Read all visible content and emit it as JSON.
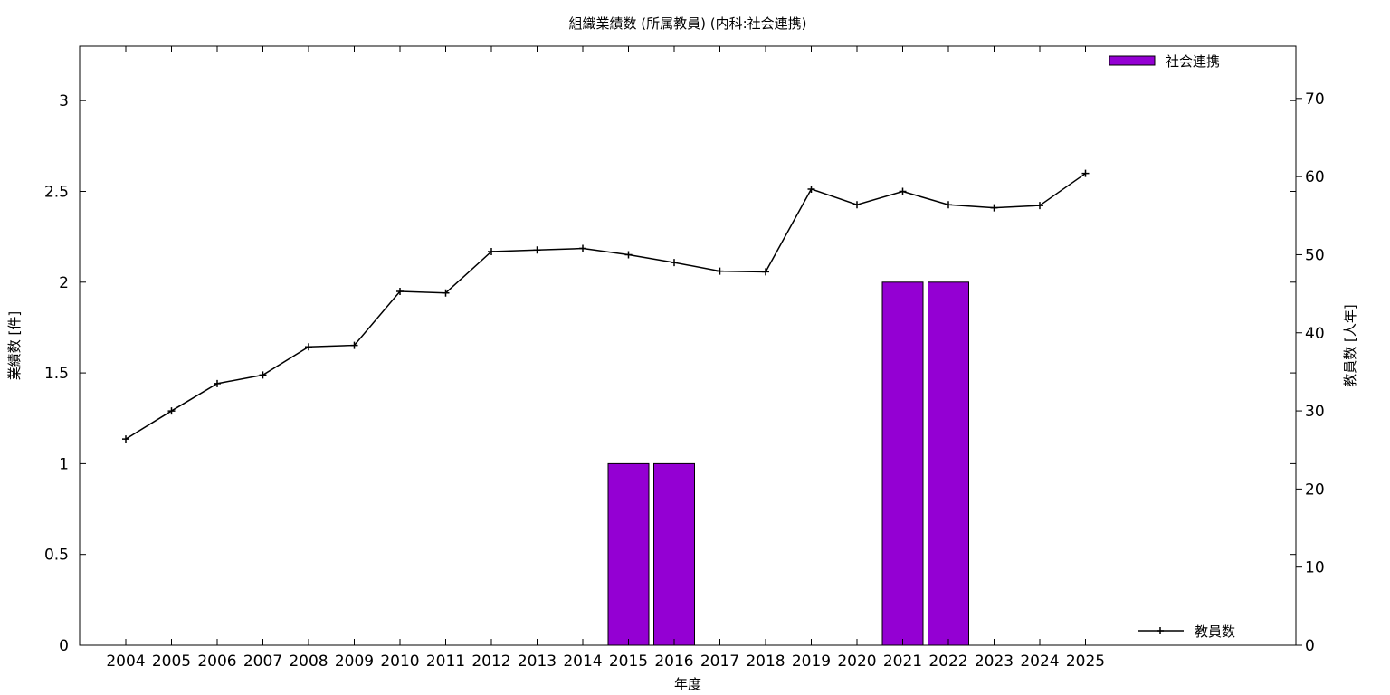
{
  "chart_data": {
    "type": "bar",
    "title": "組織業績数 (所属教員) (内科:社会連携)",
    "xlabel": "年度",
    "ylabel": "業績数 [件]",
    "y2label": "教員数 [人年]",
    "categories": [
      "2004",
      "2005",
      "2006",
      "2007",
      "2008",
      "2009",
      "2010",
      "2011",
      "2012",
      "2013",
      "2014",
      "2015",
      "2016",
      "2017",
      "2018",
      "2019",
      "2020",
      "2021",
      "2022",
      "2023",
      "2024",
      "2025"
    ],
    "ylim": [
      0,
      3.3
    ],
    "y2lim": [
      0,
      76.7
    ],
    "yticks": [
      "0",
      "0.5",
      "1",
      "1.5",
      "2",
      "2.5",
      "3"
    ],
    "y2ticks": [
      "0",
      "10",
      "20",
      "30",
      "40",
      "50",
      "60",
      "70"
    ],
    "legend_position": "top-right (bars), bottom-right (line)",
    "grid": false,
    "series": [
      {
        "name": "社会連携",
        "kind": "bar",
        "axis": "left",
        "color": "#9400d3",
        "values": [
          0,
          0,
          0,
          0,
          0,
          0,
          0,
          0,
          0,
          0,
          0,
          1,
          1,
          0,
          0,
          0,
          0,
          2,
          2,
          0,
          0,
          0
        ]
      },
      {
        "name": "教員数",
        "kind": "line",
        "axis": "right",
        "color": "#000000",
        "values": [
          26.4,
          30.0,
          33.5,
          34.6,
          38.2,
          38.4,
          45.3,
          45.1,
          50.4,
          50.6,
          50.8,
          50.0,
          49.0,
          47.9,
          47.8,
          58.4,
          56.4,
          58.1,
          56.4,
          56.0,
          56.3,
          60.4
        ]
      }
    ]
  }
}
